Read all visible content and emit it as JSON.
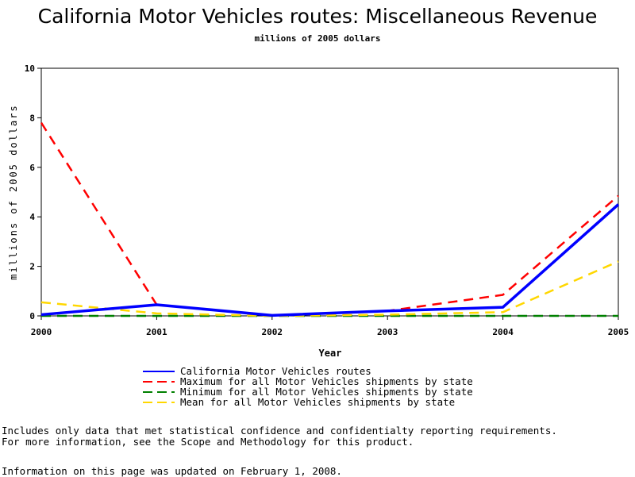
{
  "chart_data": {
    "type": "line",
    "title": "California Motor Vehicles routes: Miscellaneous Revenue",
    "subtitle": "millions of 2005 dollars",
    "xlabel": "Year",
    "ylabel": "millions of 2005 dollars",
    "x": [
      2000,
      2001,
      2002,
      2003,
      2004,
      2005
    ],
    "x_tick_labels": [
      "2000",
      "2001",
      "2002",
      "2003",
      "2004",
      "2005"
    ],
    "y_ticks": [
      0,
      2,
      4,
      6,
      8,
      10
    ],
    "ylim": [
      0,
      10
    ],
    "xlim": [
      2000,
      2005
    ],
    "grid": false,
    "legend_position": "bottom",
    "series": [
      {
        "name": "California Motor Vehicles routes",
        "color": "#0000ff",
        "style": "solid",
        "values": [
          0.05,
          0.45,
          0.02,
          0.2,
          0.35,
          4.5
        ]
      },
      {
        "name": "Maximum for all Motor Vehicles shipments by state",
        "color": "#ff0000",
        "style": "dashed",
        "values": [
          7.8,
          0.45,
          0.02,
          0.2,
          0.85,
          4.85
        ]
      },
      {
        "name": "Minimum for all Motor Vehicles shipments by state",
        "color": "#008000",
        "style": "dashed",
        "values": [
          0.0,
          0.0,
          0.0,
          0.0,
          0.0,
          0.0
        ]
      },
      {
        "name": "Mean for all Motor Vehicles shipments by state",
        "color": "#ffd700",
        "style": "dashed",
        "values": [
          0.55,
          0.1,
          0.0,
          0.05,
          0.15,
          2.2
        ]
      }
    ]
  },
  "footnotes": {
    "line1": "Includes only data that met statistical confidence and confidentialty reporting requirements.",
    "line2": "For more information, see the Scope and Methodology for this product.",
    "line3": "Information on this page was updated on February 1, 2008."
  }
}
